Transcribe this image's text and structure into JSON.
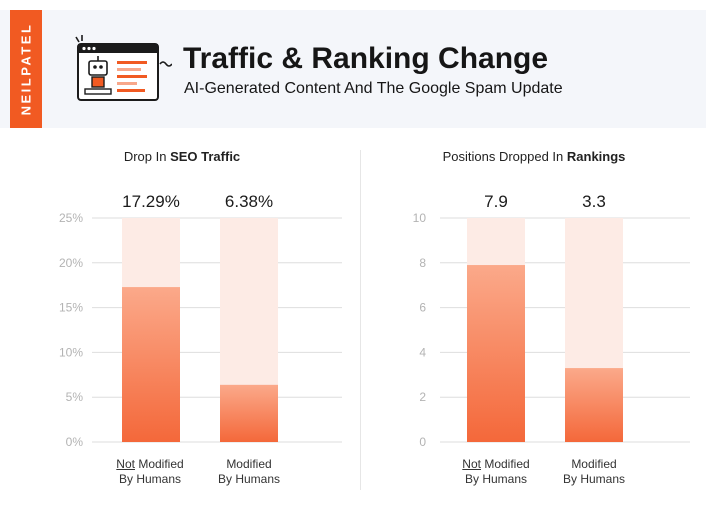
{
  "brand": "NEILPATEL",
  "header": {
    "title": "Traffic & Ranking Change",
    "subtitle": "AI-Generated Content And The Google Spam Update",
    "icon": "robot-browser-icon"
  },
  "colors": {
    "accent": "#f15a22",
    "bar_top": "#fba98a",
    "bar_bottom": "#f4683a",
    "track": "#fdebe5",
    "grid": "#dedede",
    "header_bg": "#f4f6fa"
  },
  "chart_data": [
    {
      "type": "bar",
      "title_prefix": "Drop In ",
      "title_bold": "SEO Traffic",
      "categories": [
        {
          "underlined": "Not",
          "rest": " Modified",
          "line2": "By Humans"
        },
        {
          "underlined": "",
          "rest": "Modified",
          "line2": "By Humans"
        }
      ],
      "values": [
        17.29,
        6.38
      ],
      "value_labels": [
        "17.29%",
        "6.38%"
      ],
      "ylim": [
        0,
        25
      ],
      "yticks": [
        0,
        5,
        10,
        15,
        20,
        25
      ],
      "ytick_labels": [
        "0%",
        "5%",
        "10%",
        "15%",
        "20%",
        "25%"
      ],
      "grid": true
    },
    {
      "type": "bar",
      "title_prefix": "Positions Dropped In ",
      "title_bold": "Rankings",
      "categories": [
        {
          "underlined": "Not",
          "rest": " Modified",
          "line2": "By Humans"
        },
        {
          "underlined": "",
          "rest": "Modified",
          "line2": "By Humans"
        }
      ],
      "values": [
        7.9,
        3.3
      ],
      "value_labels": [
        "7.9",
        "3.3"
      ],
      "ylim": [
        0,
        10
      ],
      "yticks": [
        0,
        2,
        4,
        6,
        8,
        10
      ],
      "ytick_labels": [
        "0",
        "2",
        "4",
        "6",
        "8",
        "10"
      ],
      "grid": true
    }
  ]
}
